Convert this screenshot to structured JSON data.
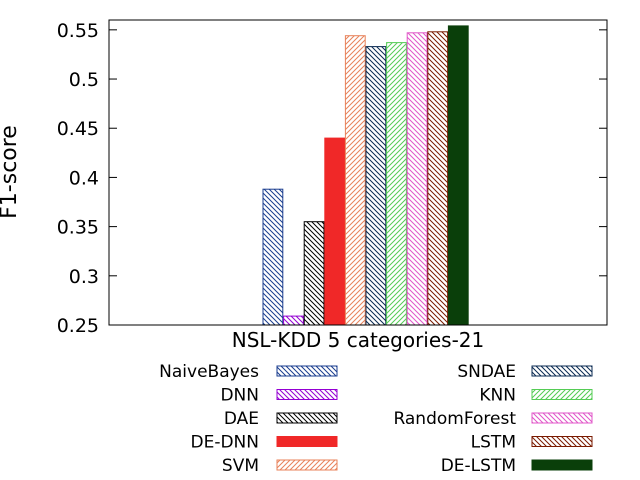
{
  "chart_data": {
    "type": "bar",
    "title": "",
    "xlabel": "",
    "ylabel": "F1-score",
    "categories": [
      "NSL-KDD 5 categories-21"
    ],
    "ylim": [
      0.25,
      0.56
    ],
    "yticks": [
      0.25,
      0.3,
      0.35,
      0.4,
      0.45,
      0.5,
      0.55
    ],
    "ytick_labels": [
      "0.25",
      "0.3",
      "0.35",
      "0.4",
      "0.45",
      "0.5",
      "0.55"
    ],
    "grid": false,
    "legend_placement": "bottom, two columns",
    "series": [
      {
        "name": "NaiveBayes",
        "values": [
          0.388
        ],
        "color": "#1a3d8f",
        "pattern": "back-hatch"
      },
      {
        "name": "DNN",
        "values": [
          0.259
        ],
        "color": "#9400d3",
        "pattern": "back-hatch"
      },
      {
        "name": "DAE",
        "values": [
          0.355
        ],
        "color": "#000000",
        "pattern": "back-hatch"
      },
      {
        "name": "DE-DNN",
        "values": [
          0.44
        ],
        "color": "#f02828",
        "pattern": "solid"
      },
      {
        "name": "SVM",
        "values": [
          0.544
        ],
        "color": "#e8825a",
        "pattern": "fwd-hatch"
      },
      {
        "name": "SNDAE",
        "values": [
          0.533
        ],
        "color": "#0a2a52",
        "pattern": "back-hatch"
      },
      {
        "name": "KNN",
        "values": [
          0.537
        ],
        "color": "#55cc55",
        "pattern": "fwd-hatch"
      },
      {
        "name": "RandomForest",
        "values": [
          0.547
        ],
        "color": "#e055c8",
        "pattern": "back-hatch"
      },
      {
        "name": "LSTM",
        "values": [
          0.548
        ],
        "color": "#7a1a00",
        "pattern": "back-hatch"
      },
      {
        "name": "DE-LSTM",
        "values": [
          0.554
        ],
        "color": "#0a3f0a",
        "pattern": "solid"
      }
    ]
  }
}
